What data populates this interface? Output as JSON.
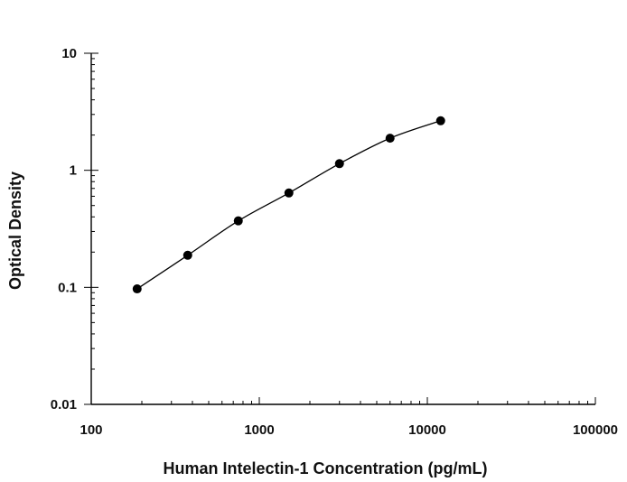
{
  "chart_data": {
    "type": "scatter",
    "title": "",
    "xlabel": "Human Intelectin-1 Concentration (pg/mL)",
    "ylabel": "Optical Density",
    "x_scale": "log",
    "y_scale": "log",
    "xlim": [
      100,
      100000
    ],
    "ylim": [
      0.01,
      10
    ],
    "x_ticks": [
      100,
      1000,
      10000,
      100000
    ],
    "x_tick_labels": [
      "100",
      "1000",
      "10000",
      "100000"
    ],
    "y_ticks": [
      0.01,
      0.1,
      1,
      10
    ],
    "y_tick_labels": [
      "0.01",
      "0.1",
      "1",
      "10"
    ],
    "grid": false,
    "legend": "none",
    "series": [
      {
        "x": [
          187.5,
          375,
          750,
          1500,
          3000,
          6000,
          12000
        ],
        "y": [
          0.097,
          0.188,
          0.37,
          0.64,
          1.14,
          1.88,
          2.65
        ],
        "fit_curve": true
      }
    ]
  }
}
